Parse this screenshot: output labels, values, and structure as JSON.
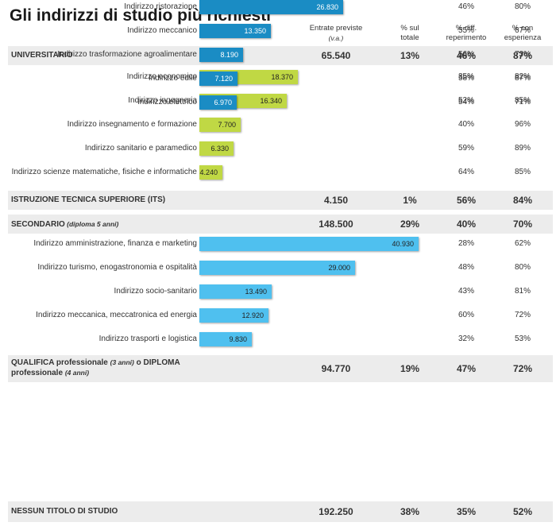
{
  "title": "Gli indirizzi di studio più richiesti",
  "columns": [
    {
      "line1": "Entrate previste",
      "line2": "(v.a.)"
    },
    {
      "line1": "% sul",
      "line2": "totale"
    },
    {
      "line1": "% diff.",
      "line2": "reperimento"
    },
    {
      "line1": "% con",
      "line2": "esperienza"
    }
  ],
  "chart_data": {
    "type": "bar",
    "orientation": "horizontal",
    "title": "Gli indirizzi di studio più richiesti",
    "groups": [
      {
        "label": "UNIVERSITARIO",
        "label_note": "",
        "label_rest": "",
        "entrate": "65.540",
        "pct_totale": "13%",
        "pct_diff": "46%",
        "pct_esp": "87%",
        "color": "#c0d844",
        "value_text_color": "#222222",
        "rows": [
          {
            "label": "Indirizzo economico",
            "value": 18370,
            "value_label": "18.370",
            "pct_diff": "35%",
            "pct_esp": "82%"
          },
          {
            "label": "Indirizzo ingegneria",
            "value": 16340,
            "value_label": "16.340",
            "pct_diff": "52%",
            "pct_esp": "85%"
          },
          {
            "label": "Indirizzo insegnamento e formazione",
            "value": 7700,
            "value_label": "7.700",
            "pct_diff": "40%",
            "pct_esp": "96%"
          },
          {
            "label": "Indirizzo sanitario e paramedico",
            "value": 6330,
            "value_label": "6.330",
            "pct_diff": "59%",
            "pct_esp": "89%"
          },
          {
            "label": "Indirizzo scienze matematiche, fisiche e informatiche",
            "value": 4240,
            "value_label": "4.240",
            "pct_diff": "64%",
            "pct_esp": "85%"
          }
        ]
      },
      {
        "label": "ISTRUZIONE TECNICA SUPERIORE  (ITS)",
        "label_note": "",
        "label_rest": "",
        "entrate": "4.150",
        "pct_totale": "1%",
        "pct_diff": "56%",
        "pct_esp": "84%",
        "color": "#c0d844",
        "value_text_color": "#222222",
        "rows": []
      },
      {
        "label": "SECONDARIO",
        "label_note": "(diploma 5 anni)",
        "label_rest": "",
        "entrate": "148.500",
        "pct_totale": "29%",
        "pct_diff": "40%",
        "pct_esp": "70%",
        "color": "#4fc0ef",
        "value_text_color": "#222222",
        "rows": [
          {
            "label": "Indirizzo amministrazione, finanza e marketing",
            "value": 40930,
            "value_label": "40.930",
            "pct_diff": "28%",
            "pct_esp": "62%"
          },
          {
            "label": "Indirizzo turismo, enogastronomia e ospitalità",
            "value": 29000,
            "value_label": "29.000",
            "pct_diff": "48%",
            "pct_esp": "80%"
          },
          {
            "label": "Indirizzo socio-sanitario",
            "value": 13490,
            "value_label": "13.490",
            "pct_diff": "43%",
            "pct_esp": "81%"
          },
          {
            "label": "Indirizzo meccanica, meccatronica ed energia",
            "value": 12920,
            "value_label": "12.920",
            "pct_diff": "60%",
            "pct_esp": "72%"
          },
          {
            "label": "Indirizzo trasporti e logistica",
            "value": 9830,
            "value_label": "9.830",
            "pct_diff": "32%",
            "pct_esp": "53%"
          }
        ]
      },
      {
        "label": "QUALIFICA professionale",
        "label_note": "(3 anni)",
        "label_rest": "o DIPLOMA",
        "label_line2": "professionale",
        "label_line2_note": "(4 anni)",
        "entrate": "94.770",
        "pct_totale": "19%",
        "pct_diff": "47%",
        "pct_esp": "72%",
        "color": "#1a8cc4",
        "value_text_color": "#ffffff",
        "rows": [
          {
            "label": "Indirizzo ristorazione",
            "value": 26830,
            "value_label": "26.830",
            "pct_diff": "46%",
            "pct_esp": "80%"
          },
          {
            "label": "Indirizzo meccanico",
            "value": 13350,
            "value_label": "13.350",
            "pct_diff": "55%",
            "pct_esp": "67%"
          },
          {
            "label": "Indirizzo trasformazione agroalimentare",
            "value": 8190,
            "value_label": "8.190",
            "pct_diff": "56%",
            "pct_esp": "73%"
          },
          {
            "label": "Indirizzo edile",
            "value": 7120,
            "value_label": "7.120",
            "pct_diff": "58%",
            "pct_esp": "87%"
          },
          {
            "label": "Indirizzo elettrico",
            "value": 6970,
            "value_label": "6.970",
            "pct_diff": "54%",
            "pct_esp": "71%"
          }
        ]
      },
      {
        "label": "NESSUN TITOLO DI STUDIO",
        "label_note": "",
        "label_rest": "",
        "entrate": "192.250",
        "pct_totale": "38%",
        "pct_diff": "35%",
        "pct_esp": "52%",
        "color": "#c0d844",
        "value_text_color": "#222222",
        "rows": []
      }
    ]
  }
}
